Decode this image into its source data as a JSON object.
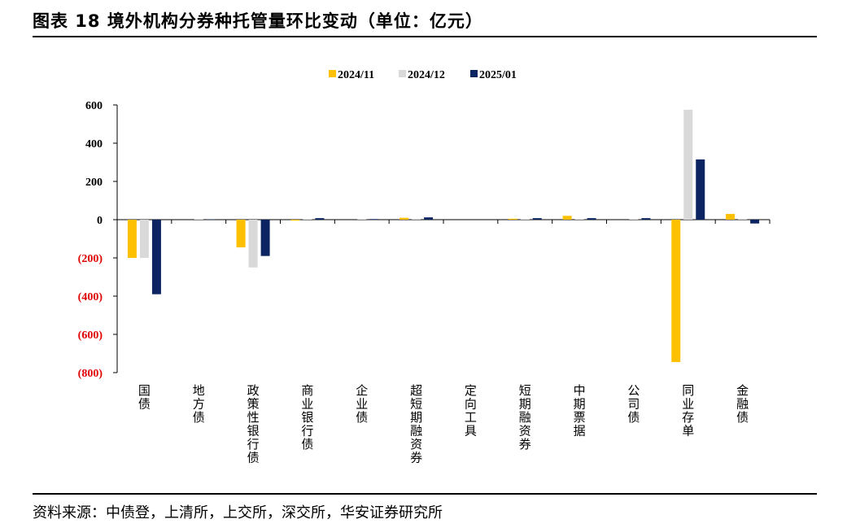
{
  "header": {
    "title": "图表 18  境外机构分券种托管量环比变动（单位：亿元）"
  },
  "footer": {
    "source": "资料来源：中债登，上清所，上交所，深交所，华安证券研究所"
  },
  "colors": {
    "2024/11": "#FFC000",
    "2024/12": "#D9D9D9",
    "2025/01": "#0C2461",
    "negative_label": "#E00000"
  },
  "chart_data": {
    "type": "bar",
    "categories": [
      "国债",
      "地方债",
      "政策性银行债",
      "商业银行债",
      "企业债",
      "超短期融资券",
      "定向工具",
      "短期融资券",
      "中期票据",
      "公司债",
      "同业存单",
      "金融债"
    ],
    "series": [
      {
        "name": "2024/11",
        "values": [
          -200,
          0,
          -145,
          -5,
          0,
          10,
          0,
          5,
          20,
          0,
          -745,
          30
        ]
      },
      {
        "name": "2024/12",
        "values": [
          -200,
          2,
          -250,
          2,
          2,
          5,
          0,
          2,
          3,
          3,
          575,
          5
        ]
      },
      {
        "name": "2025/01",
        "values": [
          -390,
          2,
          -190,
          8,
          3,
          12,
          0,
          8,
          8,
          8,
          315,
          -20
        ]
      }
    ],
    "ylim": [
      -800,
      600
    ],
    "yticks": [
      600,
      400,
      200,
      0,
      -200,
      -400,
      -600,
      -800
    ],
    "ytick_labels": [
      "600",
      "400",
      "200",
      "0",
      "(200)",
      "(400)",
      "(600)",
      "(800)"
    ],
    "legend_position": "top-center",
    "grid": false
  }
}
